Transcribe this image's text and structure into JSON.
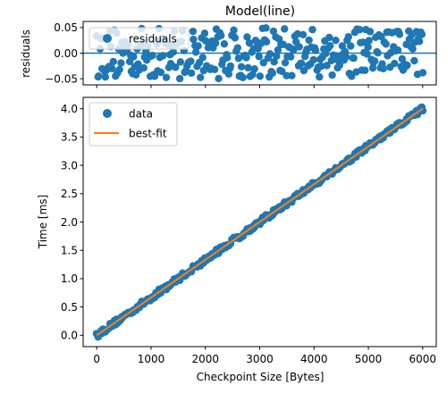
{
  "colors": {
    "data": "#1f77b4",
    "fit": "#ff7f0e",
    "zero_line": "#1f77b4"
  },
  "chart_data": [
    {
      "id": "residuals_panel",
      "type": "scatter",
      "title": "Model(line)",
      "xlabel": "",
      "ylabel": "residuals",
      "xlim": [
        -250,
        6250
      ],
      "ylim": [
        -0.062,
        0.062
      ],
      "xticks": [
        0,
        1000,
        2000,
        3000,
        4000,
        5000,
        6000
      ],
      "yticks": [
        0.05,
        0.0,
        -0.05
      ],
      "ytick_labels": [
        "0.05",
        "0.00",
        "−0.05"
      ],
      "x_tick_labels_visible": false,
      "legend": {
        "position": "upper-left",
        "entries": [
          "residuals"
        ]
      },
      "zero_line": 0,
      "series": [
        {
          "name": "residuals",
          "kind": "scatter",
          "x_range": [
            0,
            6000
          ],
          "count": 300,
          "spread": 0.05
        }
      ]
    },
    {
      "id": "fit_panel",
      "type": "scatter",
      "title": "",
      "xlabel": "Checkpoint Size [Bytes]",
      "ylabel": "Time [ms]",
      "xlim": [
        -250,
        6250
      ],
      "ylim": [
        -0.2,
        4.2
      ],
      "xticks": [
        0,
        1000,
        2000,
        3000,
        4000,
        5000,
        6000
      ],
      "xtick_labels": [
        "0",
        "1000",
        "2000",
        "3000",
        "4000",
        "5000",
        "6000"
      ],
      "yticks": [
        0.0,
        0.5,
        1.0,
        1.5,
        2.0,
        2.5,
        3.0,
        3.5,
        4.0
      ],
      "ytick_labels": [
        "0.0",
        "0.5",
        "1.0",
        "1.5",
        "2.0",
        "2.5",
        "3.0",
        "3.5",
        "4.0"
      ],
      "legend": {
        "position": "upper-left",
        "entries": [
          "data",
          "best-fit"
        ]
      },
      "series": [
        {
          "name": "data",
          "kind": "scatter",
          "x_range": [
            0,
            6000
          ],
          "count": 300
        },
        {
          "name": "best-fit",
          "kind": "line",
          "x": [
            0,
            6000
          ],
          "y": [
            0.0,
            4.0
          ]
        }
      ]
    }
  ]
}
